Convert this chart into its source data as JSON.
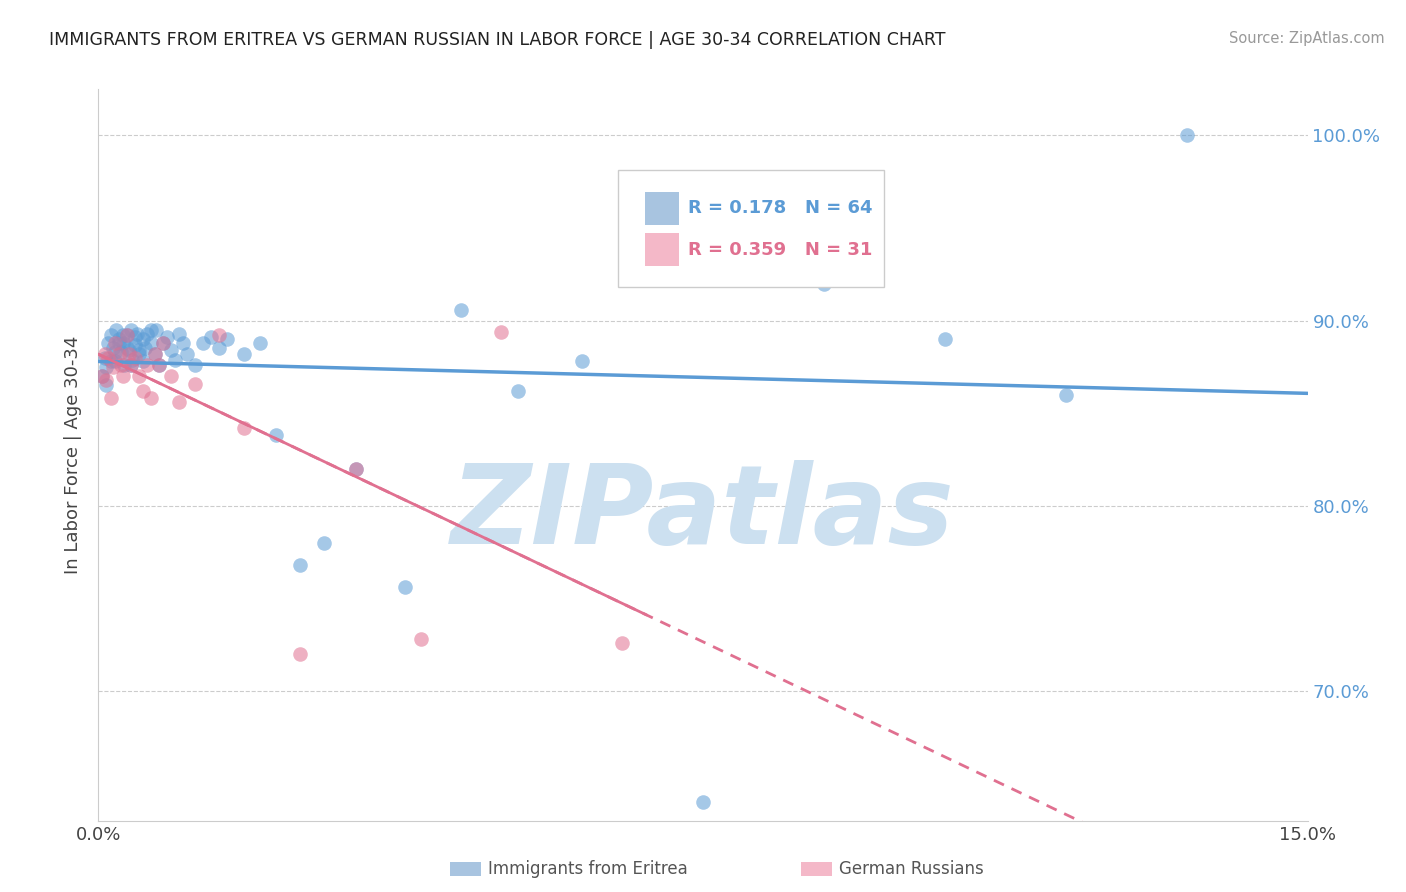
{
  "title": "IMMIGRANTS FROM ERITREA VS GERMAN RUSSIAN IN LABOR FORCE | AGE 30-34 CORRELATION CHART",
  "source": "Source: ZipAtlas.com",
  "ylabel": "In Labor Force | Age 30-34",
  "xlim": [
    0.0,
    15.0
  ],
  "ylim": [
    0.63,
    1.025
  ],
  "ytick_vals": [
    0.7,
    0.8,
    0.9,
    1.0
  ],
  "ytick_labels": [
    "70.0%",
    "80.0%",
    "90.0%",
    "100.0%"
  ],
  "xtick_vals": [
    0.0,
    15.0
  ],
  "xtick_labels": [
    "0.0%",
    "15.0%"
  ],
  "blue_color": "#5b9bd5",
  "pink_color": "#e07090",
  "blue_fill": "#a8c4e0",
  "pink_fill": "#f4b8c8",
  "scatter_alpha": 0.55,
  "scatter_size": 110,
  "watermark_text": "ZIPatlas",
  "watermark_color": "#cce0f0",
  "grid_color": "#cccccc",
  "bg_color": "#ffffff",
  "R_blue": 0.178,
  "N_blue": 64,
  "R_pink": 0.359,
  "N_pink": 31,
  "label_blue": "Immigrants from Eritrea",
  "label_pink": "German Russians",
  "blue_x": [
    0.05,
    0.08,
    0.1,
    0.12,
    0.15,
    0.18,
    0.2,
    0.22,
    0.25,
    0.28,
    0.3,
    0.32,
    0.35,
    0.38,
    0.4,
    0.42,
    0.45,
    0.48,
    0.5,
    0.55,
    0.58,
    0.6,
    0.65,
    0.7,
    0.72,
    0.75,
    0.8,
    0.85,
    0.9,
    0.95,
    1.0,
    1.05,
    1.1,
    1.2,
    1.3,
    1.4,
    1.5,
    1.6,
    1.8,
    2.0,
    2.2,
    2.5,
    2.8,
    3.2,
    3.8,
    4.5,
    5.2,
    6.0,
    7.5,
    9.0,
    10.5,
    12.0,
    13.5,
    0.1,
    0.15,
    0.2,
    0.25,
    0.3,
    0.35,
    0.4,
    0.45,
    0.5,
    0.55,
    0.65
  ],
  "blue_y": [
    0.87,
    0.88,
    0.875,
    0.888,
    0.892,
    0.885,
    0.878,
    0.895,
    0.89,
    0.883,
    0.888,
    0.876,
    0.892,
    0.884,
    0.895,
    0.879,
    0.887,
    0.893,
    0.882,
    0.89,
    0.885,
    0.893,
    0.888,
    0.882,
    0.895,
    0.876,
    0.888,
    0.891,
    0.884,
    0.879,
    0.893,
    0.888,
    0.882,
    0.876,
    0.888,
    0.891,
    0.885,
    0.89,
    0.882,
    0.888,
    0.838,
    0.768,
    0.78,
    0.82,
    0.756,
    0.906,
    0.862,
    0.878,
    0.64,
    0.92,
    0.89,
    0.86,
    1.0,
    0.865,
    0.878,
    0.883,
    0.888,
    0.892,
    0.885,
    0.876,
    0.891,
    0.884,
    0.878,
    0.895
  ],
  "pink_x": [
    0.05,
    0.08,
    0.1,
    0.12,
    0.15,
    0.18,
    0.2,
    0.25,
    0.28,
    0.3,
    0.35,
    0.38,
    0.4,
    0.45,
    0.5,
    0.55,
    0.6,
    0.65,
    0.7,
    0.75,
    0.8,
    0.9,
    1.0,
    1.2,
    1.5,
    1.8,
    2.5,
    3.2,
    4.0,
    5.0,
    6.5
  ],
  "pink_y": [
    0.87,
    0.882,
    0.868,
    0.88,
    0.858,
    0.875,
    0.888,
    0.882,
    0.876,
    0.87,
    0.892,
    0.882,
    0.876,
    0.88,
    0.87,
    0.862,
    0.876,
    0.858,
    0.882,
    0.876,
    0.888,
    0.87,
    0.856,
    0.866,
    0.892,
    0.842,
    0.72,
    0.82,
    0.728,
    0.894,
    0.726
  ]
}
